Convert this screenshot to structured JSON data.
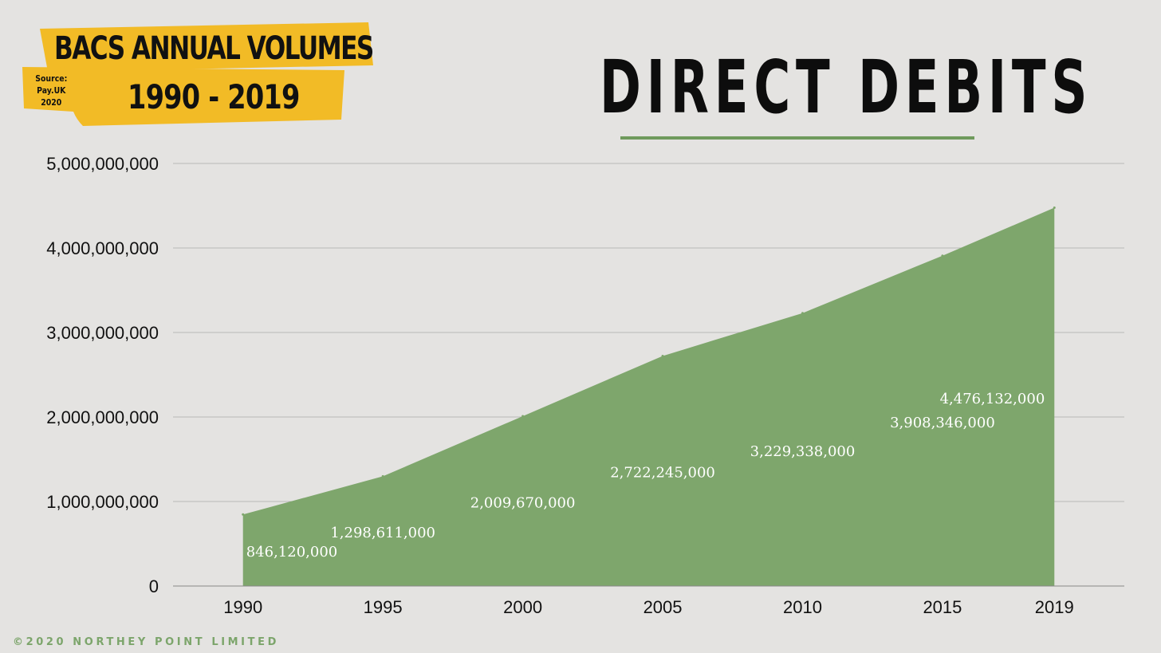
{
  "badge": {
    "title": "BACS ANNUAL VOLUMES",
    "years": "1990 - 2019",
    "source_line1": "Source:",
    "source_line2": "Pay.UK 2020",
    "color": "#f2bb26"
  },
  "headline": "DIRECT DEBITS",
  "footer": "©2020 NORTHEY POINT LIMITED",
  "chart_data": {
    "type": "area",
    "title": "",
    "xlabel": "",
    "ylabel": "",
    "x": [
      1990,
      1995,
      2000,
      2005,
      2010,
      2015,
      2019
    ],
    "values": [
      846120000,
      1298611000,
      2009670000,
      2722245000,
      3229338000,
      3908346000,
      4476132000
    ],
    "data_labels": [
      "846,120,000",
      "1,298,611,000",
      "2,009,670,000",
      "2,722,245,000",
      "3,229,338,000",
      "3,908,346,000",
      "4,476,132,000"
    ],
    "x_tick_labels": [
      "1990",
      "1995",
      "2000",
      "2005",
      "2010",
      "2015",
      "2019"
    ],
    "y_tick_labels": [
      "0",
      "1,000,000,000",
      "2,000,000,000",
      "3,000,000,000",
      "4,000,000,000",
      "5,000,000,000"
    ],
    "y_ticks": [
      0,
      1000000000,
      2000000000,
      3000000000,
      4000000000,
      5000000000
    ],
    "ylim": [
      0,
      5000000000
    ],
    "xlim": [
      1987.5,
      2021.5
    ],
    "grid": true,
    "legend": "none",
    "fill_color": "#7ea66c",
    "label_color": "#ffffff",
    "grid_color": "#b8b8b8"
  }
}
